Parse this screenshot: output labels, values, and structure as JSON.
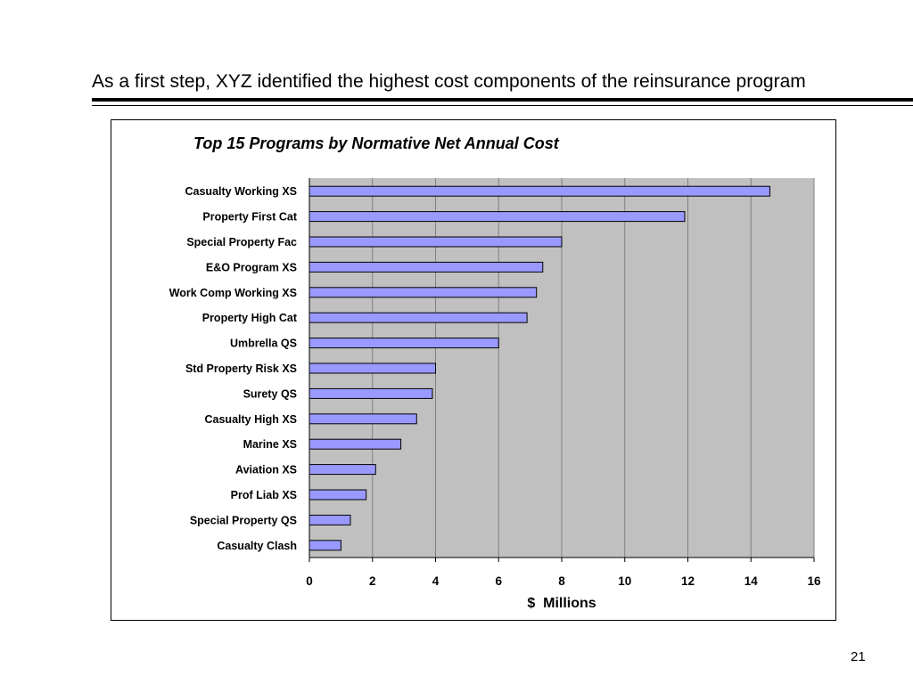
{
  "slide": {
    "title": "As a first step, XYZ identified the highest cost components of the reinsurance program",
    "page_number": "21"
  },
  "chart_data": {
    "type": "bar",
    "orientation": "horizontal",
    "title": "Top 15 Programs by Normative Net Annual Cost",
    "xlabel": "$  Millions",
    "ylabel": "",
    "xlim": [
      0,
      16
    ],
    "x_ticks": [
      0,
      2,
      4,
      6,
      8,
      10,
      12,
      14,
      16
    ],
    "grid": "vertical",
    "legend": "none",
    "categories": [
      "Casualty Working XS",
      "Property First Cat",
      "Special Property Fac",
      "E&O Program XS",
      "Work Comp Working XS",
      "Property High Cat",
      "Umbrella QS",
      "Std Property Risk XS",
      "Surety QS",
      "Casualty High XS",
      "Marine XS",
      "Aviation XS",
      "Prof Liab XS",
      "Special Property QS",
      "Casualty Clash"
    ],
    "values": [
      14.6,
      11.9,
      8.0,
      7.4,
      7.2,
      6.9,
      6.0,
      4.0,
      3.9,
      3.4,
      2.9,
      2.1,
      1.8,
      1.3,
      1.0
    ],
    "colors": {
      "bar_fill": "#9999ff",
      "bar_stroke": "#000000",
      "plot_background": "#c0c0c0",
      "gridline": "#808080"
    }
  }
}
